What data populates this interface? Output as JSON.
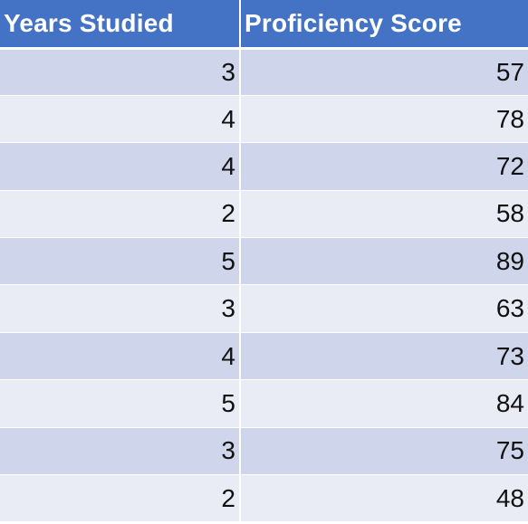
{
  "table": {
    "headers": [
      "Years Studied",
      "Proficiency Score"
    ],
    "rows": [
      [
        "3",
        "57"
      ],
      [
        "4",
        "78"
      ],
      [
        "4",
        "72"
      ],
      [
        "2",
        "58"
      ],
      [
        "5",
        "89"
      ],
      [
        "3",
        "63"
      ],
      [
        "4",
        "73"
      ],
      [
        "5",
        "84"
      ],
      [
        "3",
        "75"
      ],
      [
        "2",
        "48"
      ]
    ]
  },
  "colors": {
    "header_bg": "#4472c4",
    "header_text": "#ffffff",
    "row_band_dark": "#cfd5ea",
    "row_band_light": "#e9ebf5"
  }
}
